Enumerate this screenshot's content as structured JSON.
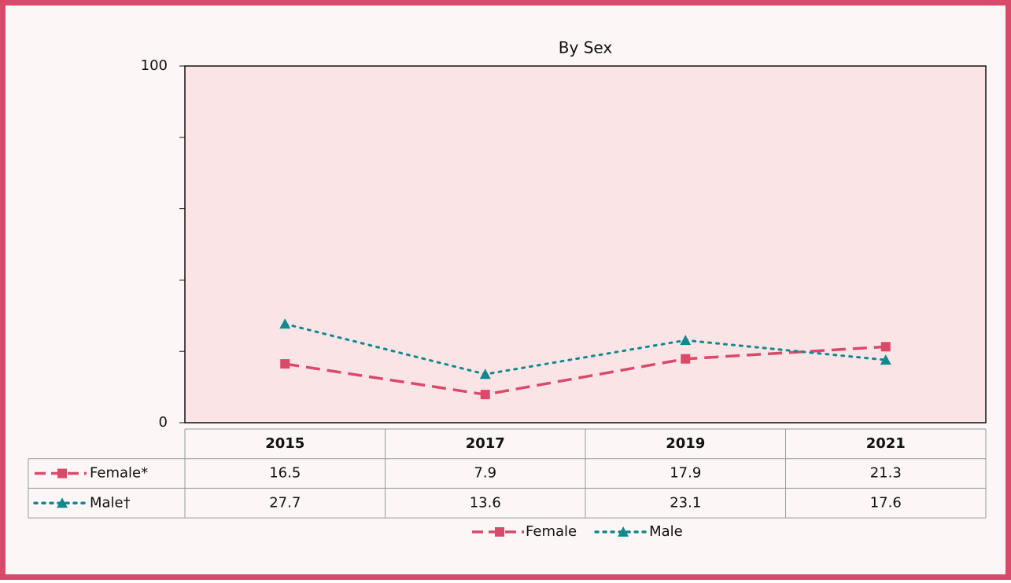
{
  "chart_data": {
    "type": "line",
    "title": "By Sex",
    "categories": [
      "2015",
      "2017",
      "2019",
      "2021"
    ],
    "series": [
      {
        "name": "Female",
        "table_label": "Female*",
        "color": "#d94a6a",
        "dash": "dashed",
        "marker": "square",
        "values": [
          16.5,
          7.9,
          17.9,
          21.3
        ]
      },
      {
        "name": "Male",
        "table_label": "Male†",
        "color": "#12898e",
        "dash": "dotted",
        "marker": "triangle",
        "values": [
          27.7,
          13.6,
          23.1,
          17.6
        ]
      }
    ],
    "ylim": [
      0,
      100
    ],
    "yticks": [
      0,
      100
    ],
    "yminorticks": [
      20,
      40,
      60,
      80
    ],
    "legend": "bottom"
  }
}
